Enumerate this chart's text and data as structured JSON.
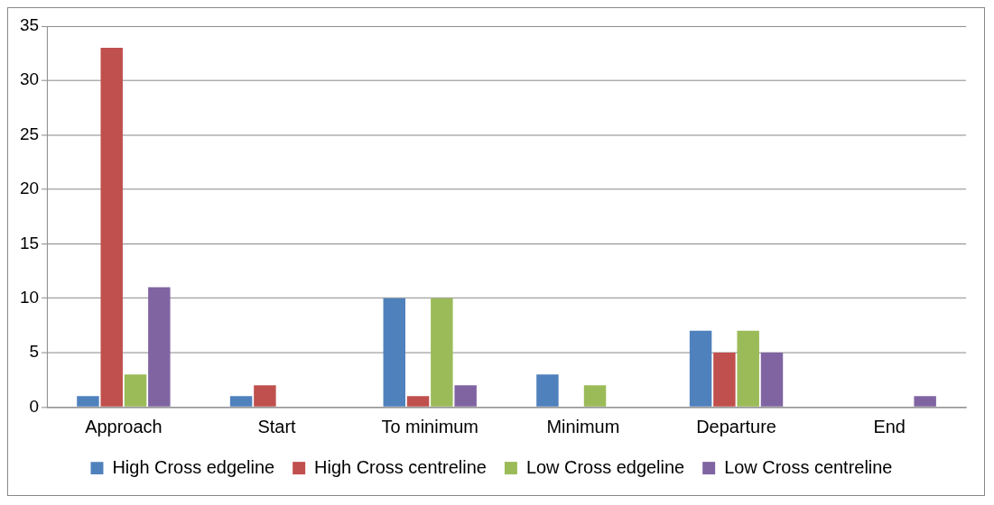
{
  "chart_data": {
    "type": "bar",
    "categories": [
      "Approach",
      "Start",
      "To minimum",
      "Minimum",
      "Departure",
      "End"
    ],
    "series": [
      {
        "name": "High Cross edgeline",
        "color": "#4f81bd",
        "values": [
          1,
          1,
          10,
          3,
          7,
          0
        ]
      },
      {
        "name": "High Cross centreline",
        "color": "#c0504d",
        "values": [
          33,
          2,
          1,
          0,
          5,
          0
        ]
      },
      {
        "name": "Low Cross edgeline",
        "color": "#9bbb59",
        "values": [
          3,
          0,
          10,
          2,
          7,
          0
        ]
      },
      {
        "name": "Low Cross centreline",
        "color": "#8064a2",
        "values": [
          11,
          0,
          2,
          0,
          5,
          1
        ]
      }
    ],
    "ylim": [
      0,
      35
    ],
    "yticks": [
      0,
      5,
      10,
      15,
      20,
      25,
      30,
      35
    ],
    "grid": "y",
    "legend": "bottom"
  }
}
